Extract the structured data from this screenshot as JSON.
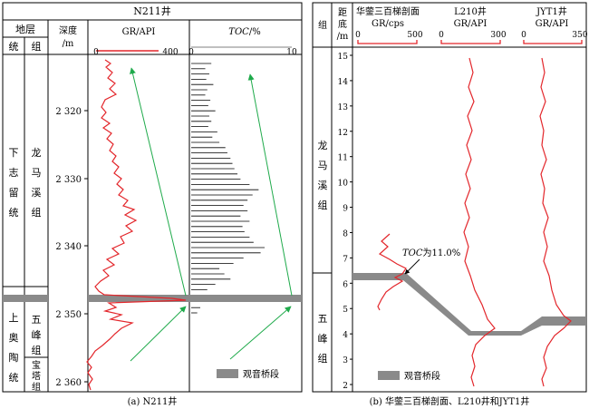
{
  "panel_a": {
    "well_title": "N211井",
    "header_strata": "地层",
    "header_series": "统",
    "header_formation": "组",
    "header_depth_line1": "深度",
    "header_depth_line2": "/m",
    "gr_label": "GR/API",
    "gr_min": "0",
    "gr_max": "400",
    "toc_label_italic": "TOC",
    "toc_label_unit": "/%",
    "toc_min": "0",
    "toc_max": "10",
    "series_upper": [
      "下",
      "志",
      "留",
      "统"
    ],
    "series_lower": [
      "上",
      "奥",
      "陶",
      "统"
    ],
    "formation_longmaxi": [
      "龙",
      "马",
      "溪",
      "组"
    ],
    "formation_wufeng": [
      "五",
      "峰",
      "组"
    ],
    "formation_baota": [
      "宝",
      "塔",
      "组"
    ],
    "depth_ticks": [
      "2 320",
      "2 330",
      "2 340",
      "2 350",
      "2 360"
    ],
    "legend_label": "观音桥段",
    "caption": "(a) N211井",
    "toc_values": [
      2,
      1.4,
      1.8,
      1.5,
      2.2,
      1.6,
      1.4,
      1.9,
      1.7,
      2.4,
      1.8,
      2.0,
      1.7,
      2.6,
      2.1,
      2.8,
      3.4,
      3.6,
      3.9,
      4.1,
      4.3,
      4.6,
      4.9,
      5.8,
      6.7,
      6.1,
      5.6,
      5.2,
      5.6,
      4.9,
      5.8,
      5.1,
      5.3,
      5.8,
      6.2,
      7.3,
      6.9,
      5.2,
      4.2,
      2.8,
      3.3,
      3.9,
      2.4,
      1.6,
      0.9,
      0.6
    ]
  },
  "panel_b": {
    "header_formation": "组",
    "header_dist": [
      "距",
      "底",
      "/m"
    ],
    "profile1_line1": "华蓥三百梯剖面",
    "profile1_line2": "GR/cps",
    "profile1_min": "0",
    "profile1_max": "500",
    "profile2_line1": "L210井",
    "profile2_line2": "GR/API",
    "profile2_min": "0",
    "profile2_max": "300",
    "profile3_line1": "JYT1井",
    "profile3_line2": "GR/API",
    "profile3_min": "0",
    "profile3_max": "350",
    "formation_longmaxi": [
      "龙",
      "马",
      "溪",
      "组"
    ],
    "formation_wufeng": [
      "五",
      "峰",
      "组"
    ],
    "y_ticks": [
      "15",
      "14",
      "13",
      "12",
      "11",
      "10",
      "9",
      "8",
      "7",
      "6",
      "5",
      "4",
      "3",
      "2"
    ],
    "toc_annotation_italic": "TOC",
    "toc_annotation_rest": "为11.0%",
    "legend_label": "观音桥段",
    "caption": "(b) 华蓥三百梯剖面、L210井和JYT1井"
  },
  "colors": {
    "gr_curve": "#e3262b",
    "arrow": "#1faa4b",
    "band": "#8a8a8a",
    "frame": "#000000"
  }
}
